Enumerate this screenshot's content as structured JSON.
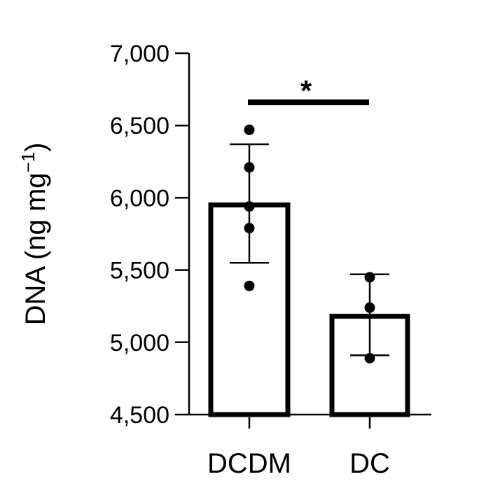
{
  "chart_data": {
    "type": "bar",
    "title": "",
    "xlabel": "",
    "ylabel": "DNA (ng mg",
    "ylabel_sup": "−1",
    "ylabel_close": ")",
    "ylim": [
      4500,
      7000
    ],
    "yticks": [
      4500,
      5000,
      5500,
      6000,
      6500,
      7000
    ],
    "ytick_labels": [
      "4,500",
      "5,000",
      "5,500",
      "6,000",
      "6,500",
      "7,000"
    ],
    "categories": [
      "DCDM",
      "DC"
    ],
    "values": [
      5950,
      5180
    ],
    "error_bars": [
      {
        "low": 5550,
        "high": 6370
      },
      {
        "low": 4910,
        "high": 5470
      }
    ],
    "points": [
      [
        6470,
        6210,
        5940,
        5790,
        5390
      ],
      [
        5450,
        5240,
        4890
      ]
    ],
    "grid": false,
    "significance": {
      "between": [
        "DCDM",
        "DC"
      ],
      "label": "*",
      "y": 6660
    },
    "colors": {
      "bar_fill": "#ffffff",
      "stroke": "#000000",
      "point": "#000000"
    }
  }
}
